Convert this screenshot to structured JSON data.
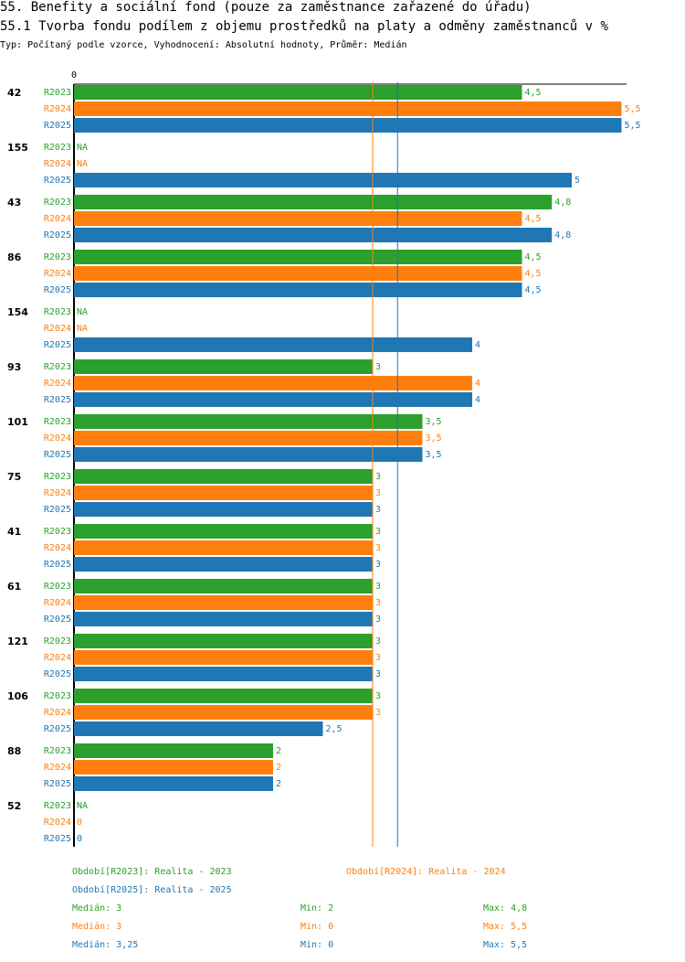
{
  "header": {
    "title": "55. Benefity a sociální fond (pouze za zaměstnance zařazené do úřadu)",
    "subtitle": "55.1 Tvorba fondu podílem z objemu prostředků na platy a odměny zaměstnanců v %",
    "type_line": "Typ: Počítaný podle vzorce, Vyhodnocení: Absolutní hodnoty, Průměr: Medián"
  },
  "chart_data": {
    "type": "bar",
    "orientation": "horizontal",
    "x_axis_zero_label": "0",
    "xlim": [
      0,
      5.5
    ],
    "series_labels": [
      "R2023",
      "R2024",
      "R2025"
    ],
    "colors": {
      "R2023": "#2ca02c",
      "R2024": "#ff7f0e",
      "R2025": "#1f77b4"
    },
    "groups": [
      {
        "id": "42",
        "values": [
          {
            "v": 4.5,
            "t": "4,5"
          },
          {
            "v": 5.5,
            "t": "5,5"
          },
          {
            "v": 5.5,
            "t": "5,5"
          }
        ]
      },
      {
        "id": "155",
        "values": [
          {
            "v": null,
            "t": "NA"
          },
          {
            "v": null,
            "t": "NA"
          },
          {
            "v": 5,
            "t": "5"
          }
        ]
      },
      {
        "id": "43",
        "values": [
          {
            "v": 4.8,
            "t": "4,8"
          },
          {
            "v": 4.5,
            "t": "4,5"
          },
          {
            "v": 4.8,
            "t": "4,8"
          }
        ]
      },
      {
        "id": "86",
        "values": [
          {
            "v": 4.5,
            "t": "4,5"
          },
          {
            "v": 4.5,
            "t": "4,5"
          },
          {
            "v": 4.5,
            "t": "4,5"
          }
        ]
      },
      {
        "id": "154",
        "values": [
          {
            "v": null,
            "t": "NA"
          },
          {
            "v": null,
            "t": "NA"
          },
          {
            "v": 4,
            "t": "4"
          }
        ]
      },
      {
        "id": "93",
        "values": [
          {
            "v": 3,
            "t": "3"
          },
          {
            "v": 4,
            "t": "4"
          },
          {
            "v": 4,
            "t": "4"
          }
        ]
      },
      {
        "id": "101",
        "values": [
          {
            "v": 3.5,
            "t": "3,5"
          },
          {
            "v": 3.5,
            "t": "3,5"
          },
          {
            "v": 3.5,
            "t": "3,5"
          }
        ]
      },
      {
        "id": "75",
        "values": [
          {
            "v": 3,
            "t": "3"
          },
          {
            "v": 3,
            "t": "3"
          },
          {
            "v": 3,
            "t": "3"
          }
        ]
      },
      {
        "id": "41",
        "values": [
          {
            "v": 3,
            "t": "3"
          },
          {
            "v": 3,
            "t": "3"
          },
          {
            "v": 3,
            "t": "3"
          }
        ]
      },
      {
        "id": "61",
        "values": [
          {
            "v": 3,
            "t": "3"
          },
          {
            "v": 3,
            "t": "3"
          },
          {
            "v": 3,
            "t": "3"
          }
        ]
      },
      {
        "id": "121",
        "values": [
          {
            "v": 3,
            "t": "3"
          },
          {
            "v": 3,
            "t": "3"
          },
          {
            "v": 3,
            "t": "3"
          }
        ]
      },
      {
        "id": "106",
        "values": [
          {
            "v": 3,
            "t": "3"
          },
          {
            "v": 3,
            "t": "3"
          },
          {
            "v": 2.5,
            "t": "2,5"
          }
        ]
      },
      {
        "id": "88",
        "values": [
          {
            "v": 2,
            "t": "2"
          },
          {
            "v": 2,
            "t": "2"
          },
          {
            "v": 2,
            "t": "2"
          }
        ]
      },
      {
        "id": "52",
        "values": [
          {
            "v": null,
            "t": "NA"
          },
          {
            "v": 0,
            "t": "0"
          },
          {
            "v": 0,
            "t": "0"
          }
        ]
      }
    ],
    "reference_lines": [
      {
        "series": "R2024",
        "value": 3
      },
      {
        "series": "R2025",
        "value": 3.25
      }
    ]
  },
  "legend": {
    "r2023": "Období[R2023]: Realita - 2023",
    "r2024": "Období[R2024]: Realita - 2024",
    "r2025": "Období[R2025]: Realita - 2025"
  },
  "stats": [
    {
      "series": "R2023",
      "median": "Medián: 3",
      "min": "Min: 2",
      "max": "Max: 4,8"
    },
    {
      "series": "R2024",
      "median": "Medián: 3",
      "min": "Min: 0",
      "max": "Max: 5,5"
    },
    {
      "series": "R2025",
      "median": "Medián: 3,25",
      "min": "Min: 0",
      "max": "Max: 5,5"
    }
  ]
}
